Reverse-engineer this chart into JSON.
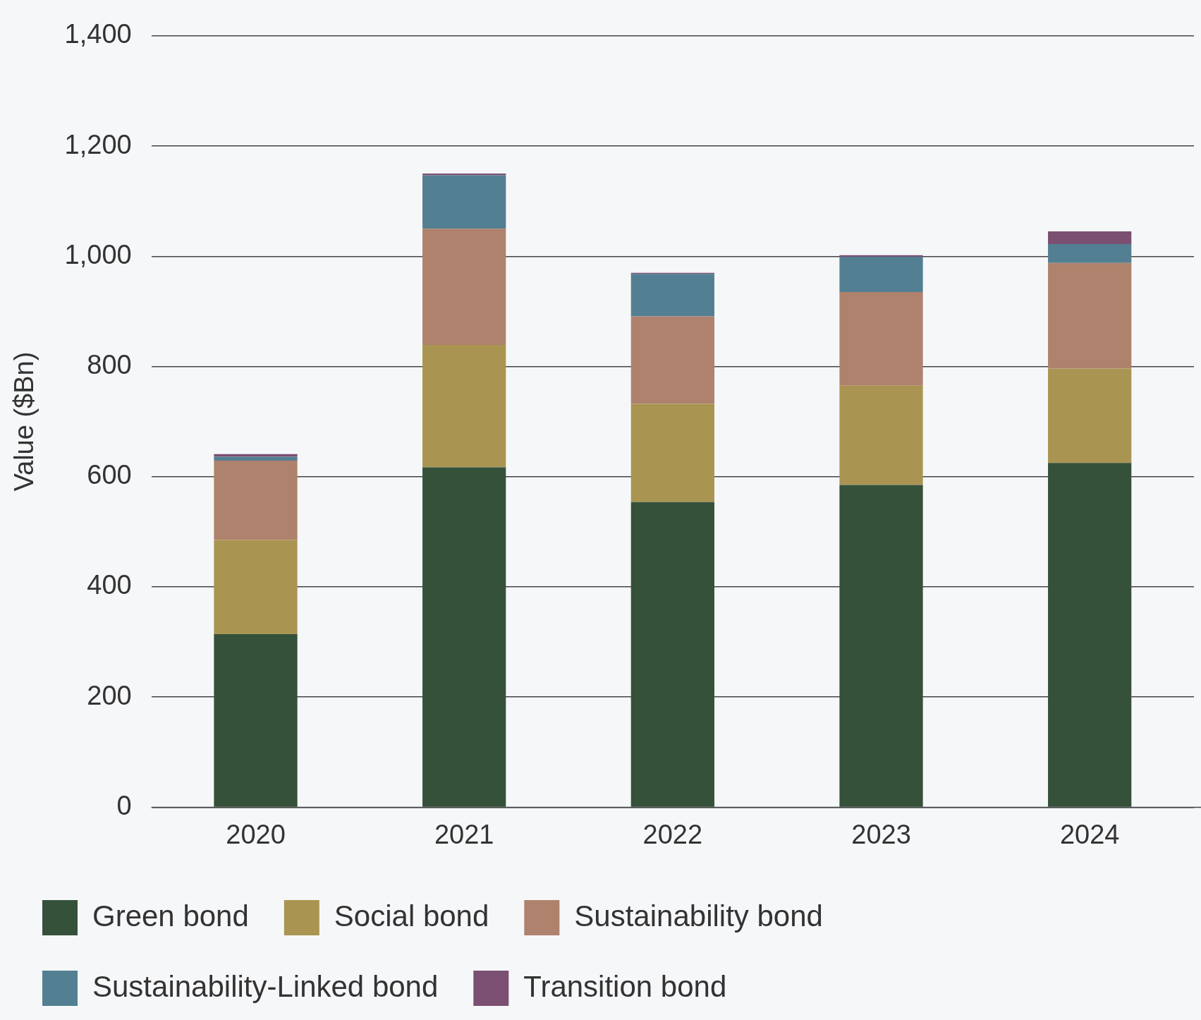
{
  "chart_data": {
    "type": "bar",
    "stacked": true,
    "ylabel": "Value ($Bn)",
    "categories": [
      "2020",
      "2021",
      "2022",
      "2023",
      "2024"
    ],
    "series": [
      {
        "name": "Green bond",
        "color": "#35513a",
        "values": [
          314,
          617,
          554,
          585,
          625
        ]
      },
      {
        "name": "Social bond",
        "color": "#a99551",
        "values": [
          171,
          222,
          178,
          180,
          171
        ]
      },
      {
        "name": "Sustainability bond",
        "color": "#ae826d",
        "values": [
          144,
          211,
          159,
          170,
          192
        ]
      },
      {
        "name": "Sustainability-Linked bond",
        "color": "#537f92",
        "values": [
          7,
          97,
          77,
          64,
          34
        ]
      },
      {
        "name": "Transition bond",
        "color": "#7a4f72",
        "values": [
          5,
          3,
          2,
          3,
          23
        ]
      }
    ],
    "ylim": [
      0,
      1400
    ],
    "yticks": [
      0,
      200,
      400,
      600,
      800,
      {
        "value": 1000,
        "label": "1,000"
      },
      {
        "value": 1200,
        "label": "1,200"
      },
      {
        "value": 1400,
        "label": "1,400"
      }
    ],
    "grid": "y",
    "legend": "bottom"
  }
}
